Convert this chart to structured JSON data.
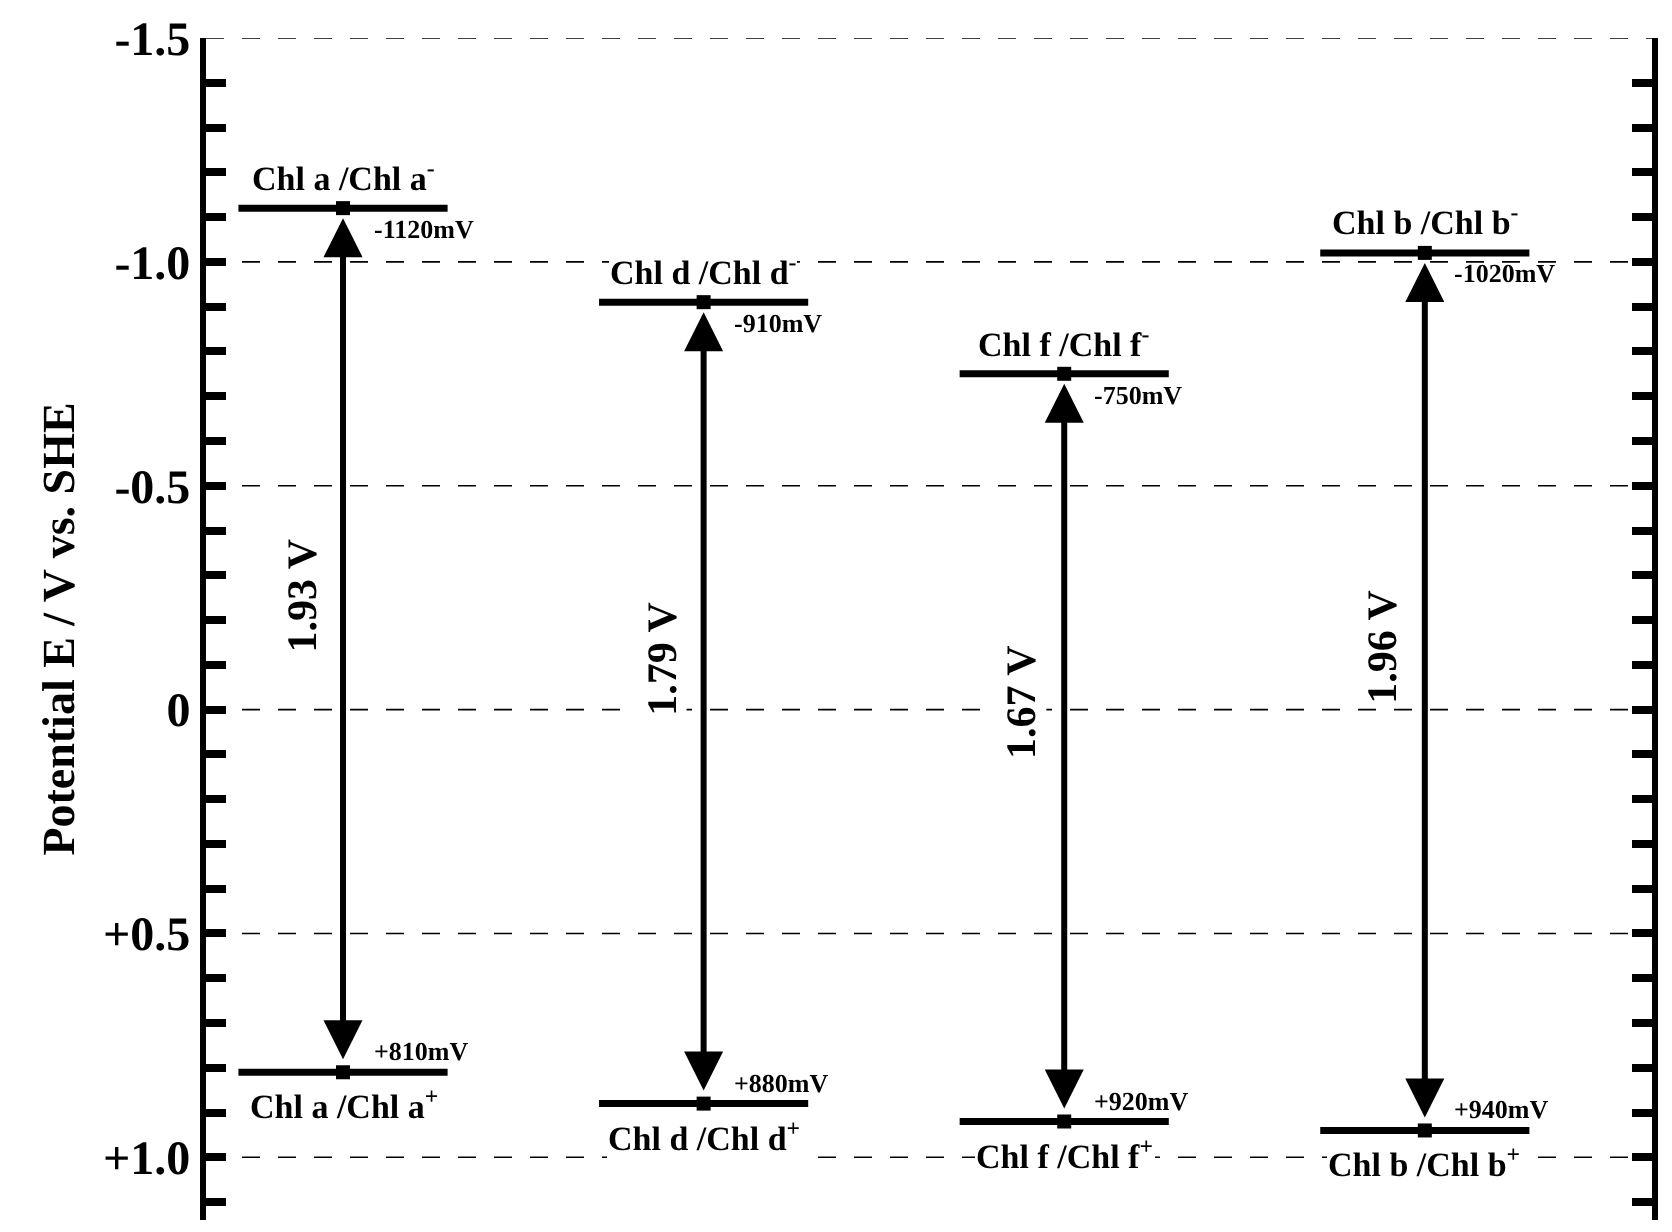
{
  "chart_data": {
    "type": "scatter",
    "ylabel": "Potential E / V vs. SHE",
    "categories": [
      null,
      null,
      null,
      null
    ],
    "series": [
      {
        "color": "#000000",
        "values": [
          -1.12,
          -0.91,
          -0.75,
          -1.02
        ]
      },
      {
        "color": "#000000",
        "values": [
          0.81,
          0.88,
          0.92,
          0.94
        ]
      }
    ],
    "ylim": [
      1.14,
      -1.5
    ],
    "yticks": [
      {
        "value": -1.5,
        "label": "-1.5"
      },
      {
        "value": -1.4,
        "label": null
      },
      {
        "value": -1.3,
        "label": null
      },
      {
        "value": -1.2,
        "label": null
      },
      {
        "value": -1.1,
        "label": null
      },
      {
        "value": -1.0,
        "label": "-1.0"
      },
      {
        "value": -0.9,
        "label": null
      },
      {
        "value": -0.8,
        "label": null
      },
      {
        "value": -0.7,
        "label": null
      },
      {
        "value": -0.6,
        "label": null
      },
      {
        "value": -0.5,
        "label": "-0.5"
      },
      {
        "value": -0.4,
        "label": null
      },
      {
        "value": -0.3,
        "label": null
      },
      {
        "value": -0.2,
        "label": null
      },
      {
        "value": -0.1,
        "label": null
      },
      0,
      {
        "value": 0.1,
        "label": null
      },
      {
        "value": 0.2,
        "label": null
      },
      {
        "value": 0.3,
        "label": null
      },
      {
        "value": 0.4,
        "label": null
      },
      {
        "value": 0.5,
        "label": "+0.5"
      },
      {
        "value": 0.6,
        "label": null
      },
      {
        "value": 0.7,
        "label": null
      },
      {
        "value": 0.8,
        "label": null
      },
      {
        "value": 0.9,
        "label": null
      },
      {
        "value": 1.0,
        "label": "+1.0"
      },
      {
        "value": 1.1,
        "label": null
      }
    ],
    "grid": "y",
    "tick_labels": "y",
    "annotations": [
      "Chl a /Chl a$^{-}$",
      "Chl d /Chl d$^{-}$",
      "Chl f /Chl f$^{-}$",
      "Chl b /Chl b$^{-}$",
      "Chl a /Chl a$^{+}$",
      "Chl d /Chl d$^{+}$",
      "Chl f /Chl f$^{+}$",
      "Chl b /Chl b$^{+}$",
      "1.93 V",
      "1.79 V",
      "1.67 V",
      "1.96 V",
      "-1120mV",
      "-910mV",
      "-750mV",
      "-1020mV",
      "+810mV",
      "+880mV",
      "+920mV",
      "+940mV"
    ]
  }
}
